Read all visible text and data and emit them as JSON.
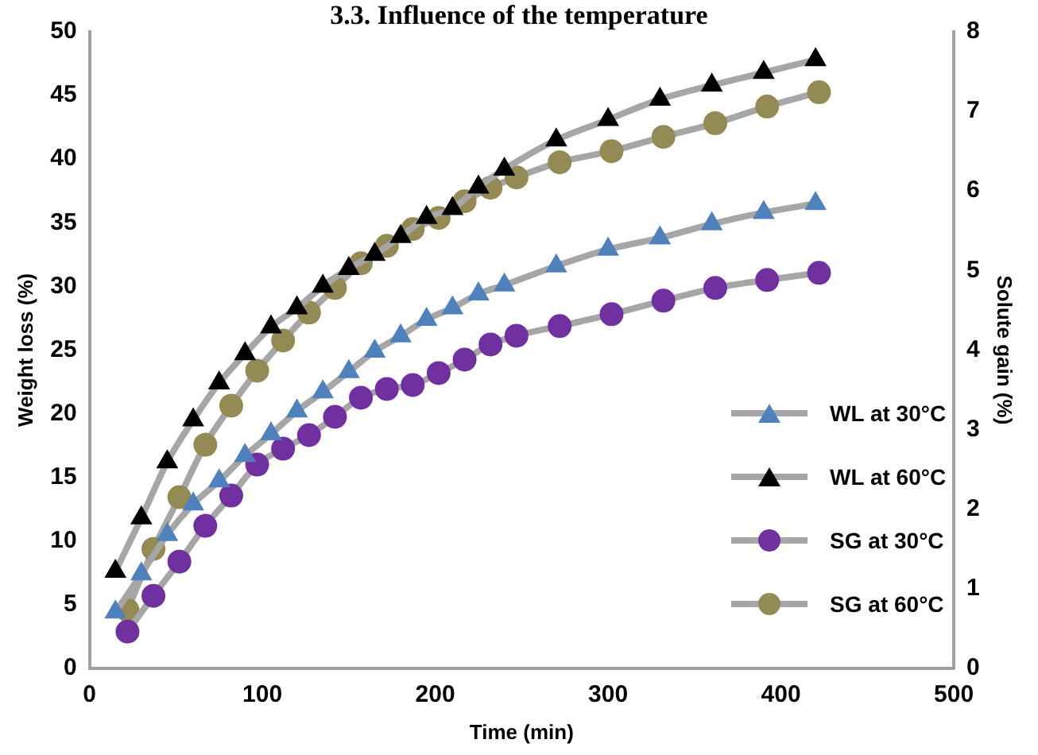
{
  "chart_data": {
    "type": "line",
    "title": "3.3. Influence of the temperature",
    "xlabel": "Time (min)",
    "ylabel": "Weight loss (%)",
    "y2label": "Solute gain (%)",
    "xlim": [
      0,
      500
    ],
    "xticks": [
      0,
      100,
      200,
      300,
      400,
      500
    ],
    "ylim": [
      0,
      50
    ],
    "yticks": [
      0,
      5,
      10,
      15,
      20,
      25,
      30,
      35,
      40,
      45,
      50
    ],
    "y2lim": [
      0,
      8
    ],
    "y2ticks": [
      0,
      1,
      2,
      3,
      4,
      5,
      6,
      7,
      8
    ],
    "grid": false,
    "legend": "bottom right",
    "series": [
      {
        "name": "WL  at 30°C",
        "color": "#4f81bd",
        "marker": "triangle",
        "x": [
          15,
          30,
          45,
          60,
          75,
          90,
          105,
          120,
          135,
          150,
          165,
          180,
          195,
          210,
          225,
          240,
          270,
          300,
          330,
          360,
          390,
          420
        ],
        "values": [
          4.4,
          7.4,
          10.5,
          12.9,
          14.7,
          16.7,
          18.4,
          20.2,
          21.7,
          23.3,
          24.9,
          26.1,
          27.4,
          28.3,
          29.4,
          30.1,
          31.6,
          32.9,
          33.8,
          34.9,
          35.8,
          36.5
        ]
      },
      {
        "name": "WL  at 60°C",
        "color": "#000000",
        "marker": "triangle",
        "x": [
          15,
          30,
          45,
          60,
          75,
          90,
          105,
          120,
          135,
          150,
          165,
          180,
          195,
          210,
          225,
          240,
          270,
          300,
          330,
          360,
          390,
          420
        ],
        "values": [
          7.6,
          11.8,
          16.2,
          19.5,
          22.4,
          24.7,
          26.8,
          28.3,
          30.0,
          31.4,
          32.5,
          33.9,
          35.4,
          36.1,
          37.8,
          39.2,
          41.5,
          43.1,
          44.7,
          45.8,
          46.8,
          47.8
        ]
      },
      {
        "name": "SG  at 30°C",
        "color": "#7030a0",
        "marker": "circle",
        "axis": "y2",
        "x": [
          22,
          37,
          52,
          67,
          82,
          97,
          112,
          127,
          142,
          157,
          172,
          187,
          202,
          217,
          232,
          247,
          272,
          302,
          332,
          362,
          392,
          422
        ],
        "values": [
          0.46,
          0.91,
          1.34,
          1.79,
          2.17,
          2.56,
          2.76,
          2.93,
          3.16,
          3.4,
          3.51,
          3.56,
          3.71,
          3.88,
          4.07,
          4.18,
          4.3,
          4.45,
          4.62,
          4.78,
          4.88,
          4.97
        ]
      },
      {
        "name": "SG  at 60°C",
        "color": "#948a54",
        "marker": "circle",
        "axis": "y2",
        "x": [
          22,
          37,
          52,
          67,
          82,
          97,
          112,
          127,
          142,
          157,
          172,
          187,
          202,
          217,
          232,
          247,
          272,
          302,
          332,
          362,
          392,
          422
        ],
        "values": [
          0.73,
          1.5,
          2.15,
          2.81,
          3.3,
          3.74,
          4.12,
          4.47,
          4.78,
          5.09,
          5.31,
          5.52,
          5.66,
          5.87,
          6.04,
          6.17,
          6.36,
          6.5,
          6.68,
          6.85,
          7.06,
          7.24
        ]
      }
    ]
  }
}
